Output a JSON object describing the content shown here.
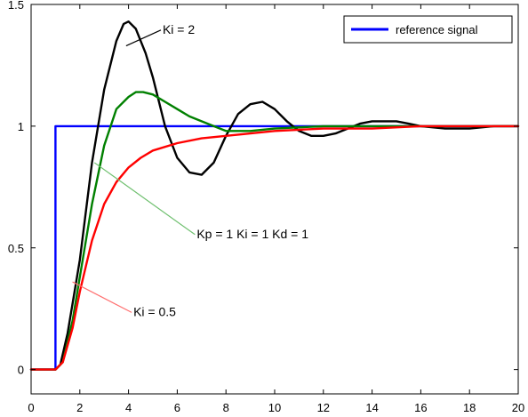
{
  "chart_data": {
    "type": "line",
    "title": "",
    "xlabel": "",
    "ylabel": "",
    "xlim": [
      0,
      20
    ],
    "ylim": [
      -0.1,
      1.5
    ],
    "grid": false,
    "legend_position": "top-right",
    "x_ticks": [
      {
        "value": 0,
        "label": "0"
      },
      {
        "value": 2,
        "label": "2"
      },
      {
        "value": 4,
        "label": "4"
      },
      {
        "value": 6,
        "label": "6"
      },
      {
        "value": 8,
        "label": "8"
      },
      {
        "value": 10,
        "label": "10"
      },
      {
        "value": 12,
        "label": "12"
      },
      {
        "value": 14,
        "label": "14"
      },
      {
        "value": 16,
        "label": "16"
      },
      {
        "value": 18,
        "label": "18"
      },
      {
        "value": 20,
        "label": "20"
      }
    ],
    "y_ticks": [
      {
        "value": 0,
        "label": "0"
      },
      {
        "value": 0.5,
        "label": "0.5"
      },
      {
        "value": 1,
        "label": "1"
      },
      {
        "value": 1.5,
        "label": "1.5"
      }
    ],
    "series": [
      {
        "name": "reference signal",
        "color": "#0000ff",
        "x": [
          0,
          1,
          1,
          20
        ],
        "y": [
          0,
          0,
          1,
          1
        ]
      },
      {
        "color": "#000000",
        "x": [
          0,
          1,
          1.2,
          1.5,
          2,
          2.5,
          3,
          3.5,
          3.8,
          4,
          4.3,
          4.7,
          5,
          5.5,
          6,
          6.5,
          7,
          7.5,
          8,
          8.5,
          9,
          9.5,
          10,
          10.5,
          11,
          11.5,
          12,
          12.5,
          13,
          13.5,
          14,
          14.5,
          15,
          15.5,
          16,
          17,
          18,
          19,
          20
        ],
        "y": [
          0,
          0,
          0.02,
          0.15,
          0.45,
          0.85,
          1.15,
          1.35,
          1.42,
          1.43,
          1.4,
          1.3,
          1.2,
          1.0,
          0.87,
          0.81,
          0.8,
          0.85,
          0.96,
          1.05,
          1.09,
          1.1,
          1.07,
          1.02,
          0.98,
          0.96,
          0.96,
          0.97,
          0.99,
          1.01,
          1.02,
          1.02,
          1.02,
          1.01,
          1.0,
          0.99,
          0.99,
          1.0,
          1.0
        ]
      },
      {
        "color": "#008000",
        "x": [
          0,
          1,
          1.3,
          1.7,
          2,
          2.5,
          3,
          3.5,
          4,
          4.3,
          4.6,
          5,
          5.5,
          6,
          6.5,
          7,
          7.5,
          8,
          9,
          10,
          12,
          14,
          16,
          18,
          20
        ],
        "y": [
          0,
          0,
          0.03,
          0.2,
          0.38,
          0.68,
          0.92,
          1.07,
          1.12,
          1.14,
          1.14,
          1.13,
          1.1,
          1.07,
          1.04,
          1.02,
          1.0,
          0.98,
          0.98,
          0.99,
          1.0,
          1.0,
          1.0,
          1.0,
          1.0
        ]
      },
      {
        "color": "#ff0000",
        "x": [
          0,
          1,
          1.3,
          1.7,
          2,
          2.5,
          3,
          3.5,
          4,
          4.5,
          5,
          6,
          7,
          8,
          9,
          10,
          12,
          14,
          16,
          18,
          20
        ],
        "y": [
          0,
          0,
          0.03,
          0.17,
          0.32,
          0.53,
          0.68,
          0.77,
          0.83,
          0.87,
          0.9,
          0.93,
          0.95,
          0.96,
          0.97,
          0.98,
          0.99,
          0.99,
          1.0,
          1.0,
          1.0
        ]
      }
    ],
    "annotations": [
      {
        "text": "Ki = 2",
        "color": "#000000",
        "target": [
          3.9,
          1.33
        ],
        "text_at": [
          5.4,
          1.38
        ],
        "anchor": "start"
      },
      {
        "text": "Kp = 1  Ki = 1  Kd = 1",
        "color": "#70c070",
        "target": [
          2.6,
          0.85
        ],
        "text_at": [
          6.8,
          0.54
        ],
        "anchor": "start"
      },
      {
        "text": "Ki = 0.5",
        "color": "#ff7070",
        "target": [
          1.7,
          0.36
        ],
        "text_at": [
          4.2,
          0.22
        ],
        "anchor": "start"
      }
    ]
  }
}
